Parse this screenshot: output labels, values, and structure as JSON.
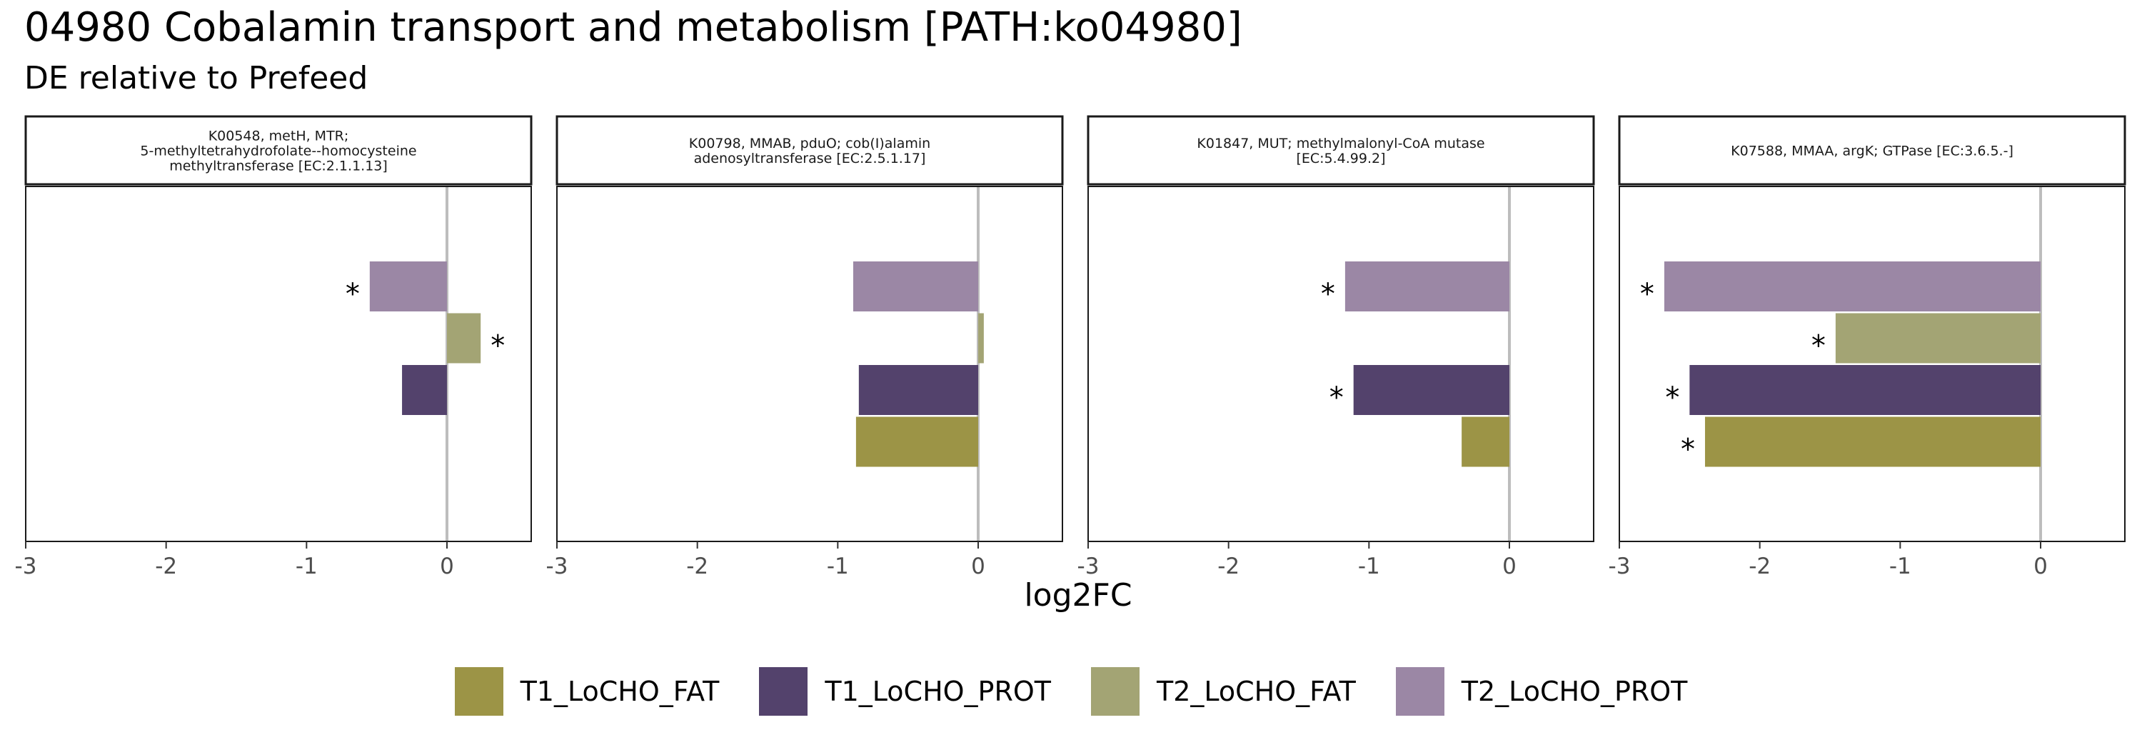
{
  "title": "04980 Cobalamin transport and metabolism [PATH:ko04980]",
  "subtitle": "DE relative to Prefeed",
  "xlabel": "log2FC",
  "colors": {
    "T1_LoCHO_FAT": "#9c9446",
    "T1_LoCHO_PROT": "#53426c",
    "T2_LoCHO_FAT": "#a3a474",
    "T2_LoCHO_PROT": "#9b87a5"
  },
  "legend": [
    "T1_LoCHO_FAT",
    "T1_LoCHO_PROT",
    "T2_LoCHO_FAT",
    "T2_LoCHO_PROT"
  ],
  "chart_data": {
    "type": "bar",
    "orientation": "horizontal",
    "xlim": [
      -3,
      0.6
    ],
    "xticks": [
      -3,
      -2,
      -1,
      0
    ],
    "series_order_top_to_bottom": [
      "T2_LoCHO_PROT",
      "T2_LoCHO_FAT",
      "T1_LoCHO_PROT",
      "T1_LoCHO_FAT"
    ],
    "significance_marker": "*",
    "panels": [
      {
        "strip": [
          "K00548, metH, MTR;",
          "5-methyltetrahydrofolate--homocysteine",
          "methyltransferase [EC:2.1.1.13]"
        ],
        "bars": [
          {
            "series": "T2_LoCHO_PROT",
            "value": -0.55,
            "sig": true
          },
          {
            "series": "T2_LoCHO_FAT",
            "value": 0.24,
            "sig": true
          },
          {
            "series": "T1_LoCHO_PROT",
            "value": -0.32,
            "sig": false
          }
        ]
      },
      {
        "strip": [
          "K00798, MMAB, pduO; cob(I)alamin",
          "adenosyltransferase [EC:2.5.1.17]"
        ],
        "bars": [
          {
            "series": "T2_LoCHO_PROT",
            "value": -0.89,
            "sig": false
          },
          {
            "series": "T2_LoCHO_FAT",
            "value": 0.04,
            "sig": false
          },
          {
            "series": "T1_LoCHO_PROT",
            "value": -0.85,
            "sig": false
          },
          {
            "series": "T1_LoCHO_FAT",
            "value": -0.87,
            "sig": false
          }
        ]
      },
      {
        "strip": [
          "K01847, MUT; methylmalonyl-CoA mutase",
          "[EC:5.4.99.2]"
        ],
        "bars": [
          {
            "series": "T2_LoCHO_PROT",
            "value": -1.17,
            "sig": true
          },
          {
            "series": "T1_LoCHO_PROT",
            "value": -1.11,
            "sig": true
          },
          {
            "series": "T1_LoCHO_FAT",
            "value": -0.34,
            "sig": false
          }
        ]
      },
      {
        "strip": [
          "K07588, MMAA, argK; GTPase [EC:3.6.5.-]"
        ],
        "bars": [
          {
            "series": "T2_LoCHO_PROT",
            "value": -2.68,
            "sig": true
          },
          {
            "series": "T2_LoCHO_FAT",
            "value": -1.46,
            "sig": true
          },
          {
            "series": "T1_LoCHO_PROT",
            "value": -2.5,
            "sig": true
          },
          {
            "series": "T1_LoCHO_FAT",
            "value": -2.39,
            "sig": true
          }
        ]
      }
    ]
  }
}
